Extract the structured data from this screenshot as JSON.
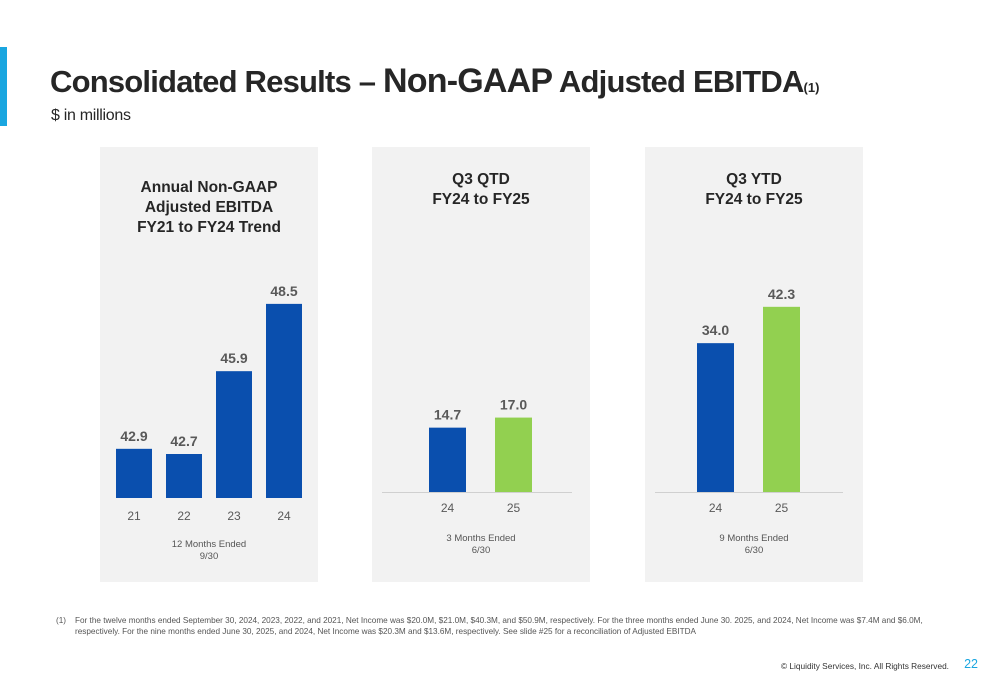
{
  "slide": {
    "title_part1": "Consolidated Results – ",
    "title_part2": "Non-GAAP",
    "title_part3": " Adjusted EBITDA",
    "title_sup": "(1)",
    "subtitle": "$ in millions",
    "footnote_marker": "(1)",
    "footnote_text": "For the twelve months ended September 30, 2024, 2023, 2022, and 2021, Net Income was $20.0M, $21.0M, $40.3M, and $50.9M, respectively. For the three months ended June 30. 2025, and 2024, Net Income was $7.4M and $6.0M, respectively. For the nine months ended June 30, 2025, and 2024, Net Income was $20.3M and $13.6M, respectively. See slide #25 for a reconciliation of Adjusted EBITDA",
    "copyright": "© Liquidity Services, Inc. All Rights Reserved.",
    "page_number": "22"
  },
  "colors": {
    "blue": "#0a4fae",
    "green": "#92d050",
    "accent": "#1aa6e0",
    "panel_bg": "#f2f2f2"
  },
  "chart_data": [
    {
      "type": "bar",
      "title": "Annual Non-GAAP\nAdjusted EBITDA\nFY21 to FY24 Trend",
      "categories": [
        "21",
        "22",
        "23",
        "24"
      ],
      "values": [
        42.9,
        42.7,
        45.9,
        48.5
      ],
      "value_labels": [
        "42.9",
        "42.7",
        "45.9",
        "48.5"
      ],
      "colors": [
        "#0a4fae",
        "#0a4fae",
        "#0a4fae",
        "#0a4fae"
      ],
      "period_label": "12 Months Ended\n9/30",
      "ylim": [
        41,
        49.5
      ],
      "grid": false
    },
    {
      "type": "bar",
      "title": "Q3 QTD\nFY24 to FY25",
      "categories": [
        "24",
        "25"
      ],
      "values": [
        14.7,
        17.0
      ],
      "value_labels": [
        "14.7",
        "17.0"
      ],
      "colors": [
        "#0a4fae",
        "#92d050"
      ],
      "period_label": "3 Months Ended\n6/30",
      "ylim": [
        0,
        45
      ],
      "grid": false
    },
    {
      "type": "bar",
      "title": "Q3 YTD\nFY24 to FY25",
      "categories": [
        "24",
        "25"
      ],
      "values": [
        34.0,
        42.3
      ],
      "value_labels": [
        "34.0",
        "42.3"
      ],
      "colors": [
        "#0a4fae",
        "#92d050"
      ],
      "period_label": "9 Months Ended\n6/30",
      "ylim": [
        0,
        45
      ],
      "grid": false
    }
  ]
}
